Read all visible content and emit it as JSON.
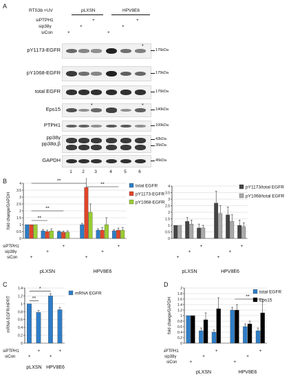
{
  "panelA": {
    "letter": "A",
    "cell_label": "RTS3b +UV",
    "groups": [
      "pLXSN",
      "HPV8E6"
    ],
    "treatments": [
      "siPTPH1",
      "sip38γ",
      "siCon"
    ],
    "treatment_marks": [
      [
        "",
        "",
        "+",
        "",
        "",
        "+"
      ],
      [
        "",
        "+",
        "",
        "",
        "+",
        ""
      ],
      [
        "+",
        "",
        "",
        "+",
        "",
        ""
      ]
    ],
    "lanes": [
      "1",
      "2",
      "3",
      "4",
      "5",
      "6"
    ],
    "blots": [
      {
        "name": "pY1173-EGFR",
        "mw": "175kDa",
        "intensity": [
          0.55,
          0.35,
          0.3,
          1.0,
          0.5,
          0.4
        ]
      },
      {
        "name": "pY1068-EGFR",
        "mw": "175kDa",
        "intensity": [
          0.85,
          0.5,
          0.35,
          1.0,
          0.6,
          0.55
        ]
      },
      {
        "name": "total EGFR",
        "mw": "175kDa",
        "intensity": [
          0.9,
          0.9,
          0.9,
          0.95,
          0.9,
          0.9
        ]
      },
      {
        "name": "Eps15",
        "mw": "140kDa",
        "intensity": [
          0.7,
          0.3,
          0.55,
          0.8,
          0.3,
          0.6
        ]
      },
      {
        "name": "PTPH1",
        "mw": "100kDa",
        "intensity": [
          0.6,
          0.6,
          0.3,
          0.65,
          0.65,
          0.3
        ]
      },
      {
        "name": "pp38γ\npp38α,β",
        "mw": "43kDa\n35kDa",
        "intensity": [
          0.85,
          0.85,
          0.85,
          0.85,
          0.85,
          0.85
        ]
      },
      {
        "name": "GAPDH",
        "mw": "45kDa",
        "intensity": [
          0.9,
          0.9,
          0.9,
          0.9,
          0.9,
          0.9
        ]
      }
    ],
    "asterisk": "*"
  },
  "panelB": {
    "letter": "B",
    "ylabel": "fold change/GAPDH",
    "significance": "**",
    "chart_data": [
      {
        "type": "bar",
        "categories": [
          "1",
          "2",
          "3",
          "4",
          "5",
          "6"
        ],
        "series": [
          {
            "name": "total EGFR",
            "color": "#2e7dc7",
            "values": [
              1.0,
              0.55,
              0.5,
              1.0,
              0.6,
              0.55
            ],
            "errors": [
              0,
              0.1,
              0.05,
              0.1,
              0.1,
              0.08
            ]
          },
          {
            "name": "pY1173-EGFR",
            "color": "#e0452a",
            "values": [
              1.0,
              0.5,
              0.45,
              3.7,
              0.6,
              0.6
            ],
            "errors": [
              0,
              0.1,
              0.08,
              0.9,
              0.2,
              0.15
            ]
          },
          {
            "name": "pY1068-EGFR",
            "color": "#9acd32",
            "values": [
              1.0,
              0.55,
              0.45,
              1.9,
              1.0,
              0.6
            ],
            "errors": [
              0,
              0.15,
              0.1,
              0.6,
              0.5,
              0.2
            ]
          }
        ],
        "ylim": [
          0,
          4
        ]
      },
      {
        "type": "bar",
        "categories": [
          "1",
          "2",
          "3",
          "4",
          "5",
          "6"
        ],
        "series": [
          {
            "name": "pY1173/total EGFR",
            "color": "#444444",
            "values": [
              1.0,
              1.3,
              0.8,
              2.7,
              1.8,
              1.0
            ],
            "errors": [
              0,
              0.3,
              0.3,
              0.9,
              0.6,
              0.4
            ]
          },
          {
            "name": "pY1068/total EGFR",
            "color": "#aaaaaa",
            "values": [
              1.0,
              1.1,
              0.8,
              1.9,
              1.3,
              0.9
            ],
            "errors": [
              0,
              0.3,
              0.2,
              0.6,
              0.5,
              0.3
            ]
          }
        ],
        "ylim": [
          0,
          4
        ]
      }
    ]
  },
  "panelC": {
    "letter": "C",
    "ylabel": "mRNA EGFR/HPRT",
    "significance": "*",
    "significance2": "**",
    "chart_data": {
      "type": "bar",
      "categories": [
        "1",
        "2",
        "3",
        "4"
      ],
      "series": [
        {
          "name": "mRNA EGFR",
          "color": "#2e7dc7",
          "values": [
            1.0,
            0.78,
            1.2,
            0.85
          ],
          "errors": [
            0,
            0.05,
            0.06,
            0.06
          ]
        }
      ],
      "ylim": [
        0,
        1.4
      ],
      "yticks": [
        "0",
        "0.2",
        "0.4",
        "0.6",
        "0.8",
        "1",
        "1.2",
        "1.4"
      ]
    },
    "treatments": [
      "siPTPH1",
      "siCon"
    ],
    "treatment_marks": [
      [
        "",
        "+",
        "",
        "+"
      ],
      [
        "+",
        "",
        "+",
        ""
      ]
    ],
    "groups": [
      "pLXSN",
      "HPV8E6"
    ]
  },
  "panelD": {
    "letter": "D",
    "ylabel": "fold change/GAPDH",
    "significance": "**",
    "chart_data": {
      "type": "bar",
      "categories": [
        "1",
        "2",
        "3",
        "4",
        "5",
        "6"
      ],
      "series": [
        {
          "name": "total EGFR",
          "color": "#2e7dc7",
          "values": [
            1.0,
            0.45,
            0.4,
            1.2,
            0.6,
            0.45
          ],
          "errors": [
            0,
            0.1,
            0.08,
            0.1,
            0.1,
            0.1
          ]
        },
        {
          "name": "Eps15",
          "color": "#000000",
          "values": [
            1.0,
            0.85,
            1.25,
            1.2,
            0.7,
            1.1
          ],
          "errors": [
            0,
            0.25,
            0.4,
            0.2,
            0.1,
            0.5
          ]
        }
      ],
      "ylim": [
        0,
        2
      ],
      "yticks": [
        "0",
        "0.2",
        "0.4",
        "0.6",
        "0.8",
        "1",
        "1.2",
        "1.4",
        "1.6",
        "1.8",
        "2"
      ]
    },
    "treatments": [
      "siPTPH1",
      "sip38γ",
      "siCon"
    ],
    "treatment_marks": [
      [
        "",
        "",
        "+",
        "",
        "",
        "+"
      ],
      [
        "",
        "+",
        "",
        "",
        "+",
        ""
      ],
      [
        "+",
        "",
        "",
        "+",
        "",
        ""
      ]
    ],
    "groups": [
      "pLXSN",
      "HPV8E6"
    ]
  },
  "b_yticks": [
    "0",
    "0.5",
    "1",
    "1.5",
    "2",
    "2.5",
    "3",
    "3.5",
    "4"
  ],
  "b2_yticks": [
    "0",
    "0.5",
    "1",
    "1.5",
    "2",
    "2.5",
    "3",
    "3.5",
    "4"
  ],
  "b_treatment_marks": [
    [
      "",
      "",
      "+",
      "",
      "",
      "+"
    ],
    [
      "",
      "+",
      "",
      "",
      "+",
      ""
    ],
    [
      "+",
      "",
      "",
      "+",
      "",
      ""
    ]
  ],
  "b_treatments": [
    "siPTPH1",
    "sip38γ",
    "siCon"
  ],
  "b_groups": [
    "pLXSN",
    "HPV8E6"
  ]
}
